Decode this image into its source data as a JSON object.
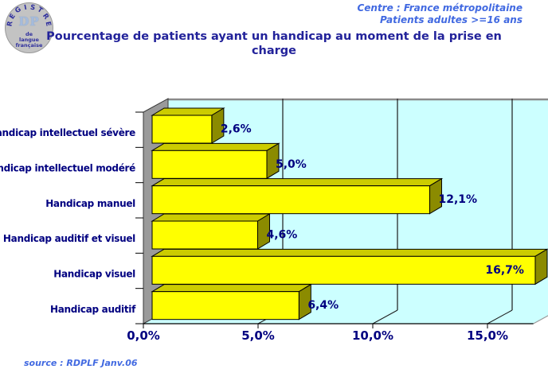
{
  "header": {
    "logo": {
      "arc_text": "REGISTRE",
      "center_text": "DP",
      "sub_lines": [
        "de",
        "langue",
        "française"
      ]
    },
    "context_lines": [
      "Centre : France métropolitaine",
      "Patients adultes >=16 ans"
    ],
    "title": "Pourcentage de patients ayant un handicap au moment de la prise en charge"
  },
  "footer": {
    "source": "source : RDPLF  Janv.06"
  },
  "palette": {
    "navy": "#000080",
    "blue_italic": "#4169E1",
    "page_bg": "#FFFFFF"
  },
  "chart_data": {
    "type": "bar",
    "orientation": "horizontal",
    "style": "3d-excel",
    "categories": [
      "Handicap  intellectuel sévère",
      "Handicap  intellectuel modéré",
      "Handicap  manuel",
      "Handicap auditif et visuel",
      "Handicap visuel",
      "Handicap auditif"
    ],
    "values": [
      2.6,
      5.0,
      12.1,
      4.6,
      16.7,
      6.4
    ],
    "value_labels": [
      "2,6%",
      "5,0%",
      "12,1%",
      "4,6%",
      "16,7%",
      "6,4%"
    ],
    "x_tick_values": [
      0,
      5,
      10,
      15
    ],
    "x_tick_labels": [
      "0,0%",
      "5,0%",
      "10,0%",
      "15,0%"
    ],
    "xlim": [
      0,
      17
    ],
    "grid": true,
    "legend": "none",
    "colors": {
      "bar_front": "#FFFF00",
      "bar_top": "#CCCC00",
      "bar_side": "#8B8B00",
      "wall": "#CCFFFF",
      "text": "#000080",
      "grid_line": "#1C1C1C",
      "wall_top_edge": "#8A8A8A",
      "side_wall": "#9A9A9A"
    }
  }
}
